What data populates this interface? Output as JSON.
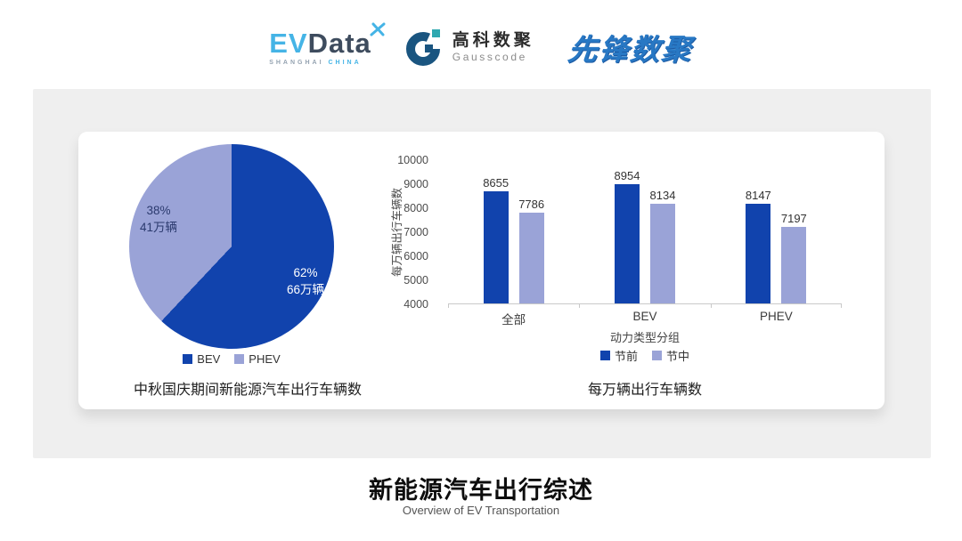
{
  "header": {
    "evdata": {
      "ev": "EV",
      "data": "Data",
      "sub_left": "SHANGHAI",
      "sub_right": "CHINA"
    },
    "gausscode": {
      "cn": "高科数聚",
      "en": "Gausscode"
    },
    "pioneer": {
      "text": "先锋数聚"
    }
  },
  "colors": {
    "primary_dark": "#1143ad",
    "primary_light": "#9aa3d7",
    "panel_bg": "#efefef",
    "axis_line": "#c9c9c9"
  },
  "chart_data": [
    {
      "type": "pie",
      "title": "中秋国庆期间新能源汽车出行车辆数",
      "slices": [
        {
          "label": "BEV",
          "percent": 62,
          "percent_text": "62%",
          "value_text": "66万辆",
          "color": "#1143ad"
        },
        {
          "label": "PHEV",
          "percent": 38,
          "percent_text": "38%",
          "value_text": "41万辆",
          "color": "#9aa3d7"
        }
      ],
      "legend_position": "bottom",
      "start_angle_deg": 0
    },
    {
      "type": "bar",
      "title": "每万辆出行车辆数",
      "categories": [
        "全部",
        "BEV",
        "PHEV"
      ],
      "series": [
        {
          "name": "节前",
          "color": "#1143ad",
          "values": [
            8655,
            8954,
            8147
          ]
        },
        {
          "name": "节中",
          "color": "#9aa3d7",
          "values": [
            7786,
            8134,
            7197
          ]
        }
      ],
      "ylabel": "每万辆出行车辆数",
      "xlabel": "动力类型分组",
      "ylim": [
        4000,
        10000
      ],
      "yticks": [
        4000,
        5000,
        6000,
        7000,
        8000,
        9000,
        10000
      ],
      "legend_position": "bottom",
      "grid": false
    }
  ],
  "footer": {
    "title": "新能源汽车出行综述",
    "subtitle": "Overview of EV Transportation"
  }
}
